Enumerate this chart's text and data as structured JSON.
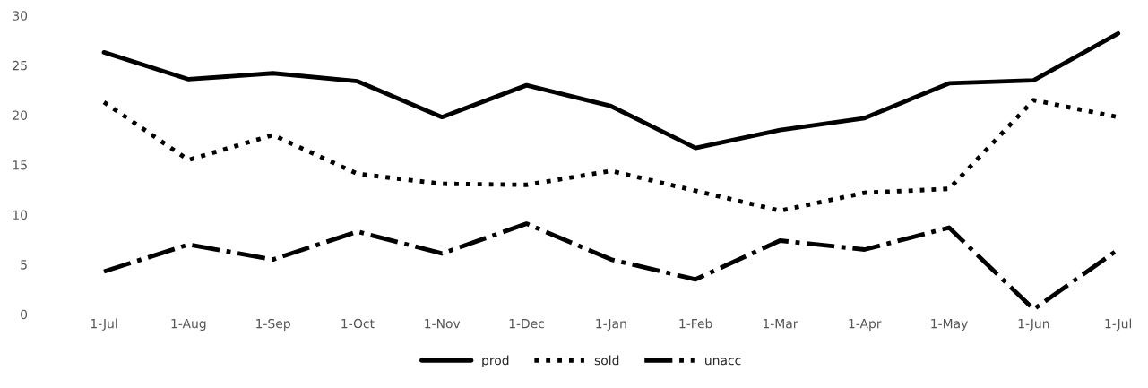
{
  "chart_data": {
    "type": "line",
    "categories": [
      "1-Jul",
      "1-Aug",
      "1-Sep",
      "1-Oct",
      "1-Nov",
      "1-Dec",
      "1-Jan",
      "1-Feb",
      "1-Mar",
      "1-Apr",
      "1-May",
      "1-Jun",
      "1-Jul"
    ],
    "series": [
      {
        "name": "prod",
        "color": "#000000",
        "line_style": "solid",
        "values": [
          26.3,
          23.6,
          24.2,
          23.4,
          19.8,
          23.0,
          20.9,
          16.7,
          18.5,
          19.7,
          23.2,
          23.5,
          28.2
        ]
      },
      {
        "name": "sold",
        "color": "#000000",
        "line_style": "dotted",
        "values": [
          21.3,
          15.5,
          18.0,
          14.1,
          13.1,
          13.0,
          14.4,
          12.4,
          10.4,
          12.2,
          12.6,
          21.5,
          19.8
        ]
      },
      {
        "name": "unacc",
        "color": "#000000",
        "line_style": "dashdot",
        "values": [
          4.3,
          7.0,
          5.5,
          8.3,
          6.1,
          9.1,
          5.5,
          3.5,
          7.4,
          6.5,
          8.7,
          0.5,
          6.5
        ]
      }
    ],
    "ylim": [
      0,
      30
    ],
    "yticks": [
      0,
      5,
      10,
      15,
      20,
      25,
      30
    ],
    "grid": false,
    "legend": "bottom",
    "marker": "none"
  }
}
